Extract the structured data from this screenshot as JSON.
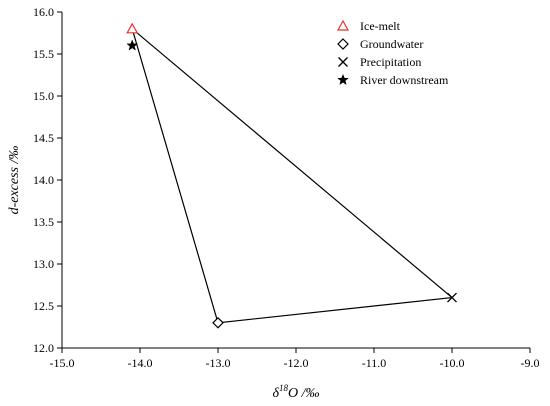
{
  "chart_data": {
    "type": "scatter",
    "xlabel": {
      "prefix": "δ",
      "superscript": "18",
      "suffix": "O /‰"
    },
    "ylabel": "d-excess /‰",
    "xlim": [
      -15.0,
      -9.0
    ],
    "ylim": [
      12.0,
      16.0
    ],
    "x_ticks": [
      "-15.0",
      "-14.0",
      "-13.0",
      "-12.0",
      "-11.0",
      "-10.0",
      "-9.0"
    ],
    "y_ticks": [
      "12.0",
      "12.5",
      "13.0",
      "13.5",
      "14.0",
      "14.5",
      "15.0",
      "15.5",
      "16.0"
    ],
    "grid": false,
    "legend_position": "top-right",
    "series": [
      {
        "name": "Ice-melt",
        "marker": "triangle",
        "color": "#e8312a",
        "points": [
          {
            "x": -14.1,
            "y": 15.8
          }
        ]
      },
      {
        "name": "Groundwater",
        "marker": "diamond",
        "color": "#000000",
        "points": [
          {
            "x": -13.0,
            "y": 12.3
          }
        ]
      },
      {
        "name": "Precipitation",
        "marker": "cross",
        "color": "#000000",
        "points": [
          {
            "x": -10.0,
            "y": 12.6
          }
        ]
      },
      {
        "name": "River downstream",
        "marker": "star",
        "color": "#000000",
        "points": [
          {
            "x": -14.1,
            "y": 15.6
          }
        ]
      }
    ],
    "mixing_triangle": [
      {
        "x": -14.1,
        "y": 15.8
      },
      {
        "x": -13.0,
        "y": 12.3
      },
      {
        "x": -10.0,
        "y": 12.6
      }
    ]
  }
}
